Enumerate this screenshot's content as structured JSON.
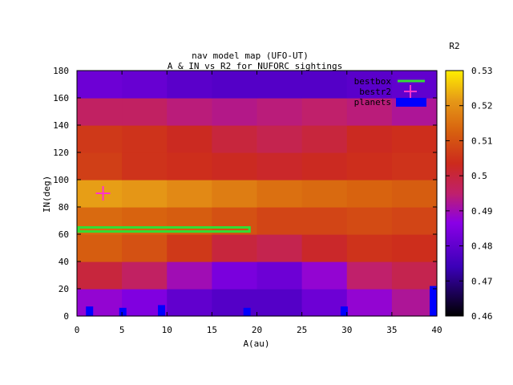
{
  "chart_data": {
    "type": "heatmap",
    "title_line1": "nav model map (UFO-UT)",
    "title_line2": "A & IN vs R2 for NUFORC sightings",
    "xlabel": "A(au)",
    "ylabel": "IN(deg)",
    "colorbar_label": "R2",
    "xlim": [
      0,
      40
    ],
    "ylim": [
      0,
      180
    ],
    "x_ticks": [
      "0",
      "5",
      "10",
      "15",
      "20",
      "25",
      "30",
      "35",
      "40"
    ],
    "y_ticks": [
      "0",
      "20",
      "40",
      "60",
      "80",
      "100",
      "120",
      "140",
      "160",
      "180"
    ],
    "colorbar_range": [
      0.46,
      0.53
    ],
    "colorbar_ticks": [
      "0.46",
      "0.47",
      "0.48",
      "0.49",
      "0.5",
      "0.51",
      "0.52",
      "0.53"
    ],
    "legend_position": "top-right",
    "legend": [
      {
        "label": "bestbox",
        "color": "#33dd33"
      },
      {
        "label": "bestr2",
        "color": "#ff33cc"
      },
      {
        "label": "planets",
        "color": "#0000ff"
      }
    ],
    "bestbox": {
      "x": [
        0,
        19
      ],
      "y": [
        62,
        65
      ]
    },
    "bestr2": {
      "x": 2.9,
      "y": 90
    },
    "planets": [
      {
        "a": 1.0,
        "w": 0.8,
        "in": 7
      },
      {
        "a": 4.7,
        "w": 0.8,
        "in": 6
      },
      {
        "a": 9.0,
        "w": 0.8,
        "in": 8
      },
      {
        "a": 18.5,
        "w": 0.8,
        "in": 6
      },
      {
        "a": 29.3,
        "w": 0.8,
        "in": 7
      },
      {
        "a": 39.2,
        "w": 0.8,
        "in": 22
      }
    ],
    "heatmap": {
      "x_edges": [
        0,
        5,
        10,
        15,
        20,
        25,
        30,
        35,
        40
      ],
      "rows": [
        {
          "in": [
            0,
            20
          ],
          "r2": [
            0.488,
            0.485,
            0.48,
            0.478,
            0.478,
            0.482,
            0.488,
            0.492
          ]
        },
        {
          "in": [
            20,
            40
          ],
          "r2": [
            0.5,
            0.496,
            0.49,
            0.484,
            0.482,
            0.488,
            0.495,
            0.498
          ]
        },
        {
          "in": [
            40,
            60
          ],
          "r2": [
            0.512,
            0.51,
            0.506,
            0.5,
            0.498,
            0.502,
            0.505,
            0.504
          ]
        },
        {
          "in": [
            60,
            80
          ],
          "r2": [
            0.514,
            0.513,
            0.512,
            0.51,
            0.508,
            0.508,
            0.509,
            0.508
          ]
        },
        {
          "in": [
            80,
            100
          ],
          "r2": [
            0.522,
            0.521,
            0.519,
            0.517,
            0.515,
            0.514,
            0.513,
            0.512
          ]
        },
        {
          "in": [
            100,
            120
          ],
          "r2": [
            0.507,
            0.505,
            0.504,
            0.503,
            0.502,
            0.503,
            0.504,
            0.505
          ]
        },
        {
          "in": [
            120,
            140
          ],
          "r2": [
            0.506,
            0.505,
            0.503,
            0.5,
            0.498,
            0.5,
            0.503,
            0.504
          ]
        },
        {
          "in": [
            140,
            160
          ],
          "r2": [
            0.496,
            0.496,
            0.494,
            0.493,
            0.494,
            0.495,
            0.494,
            0.492
          ]
        },
        {
          "in": [
            160,
            180
          ],
          "r2": [
            0.482,
            0.481,
            0.479,
            0.478,
            0.478,
            0.478,
            0.479,
            0.48
          ]
        }
      ]
    }
  }
}
